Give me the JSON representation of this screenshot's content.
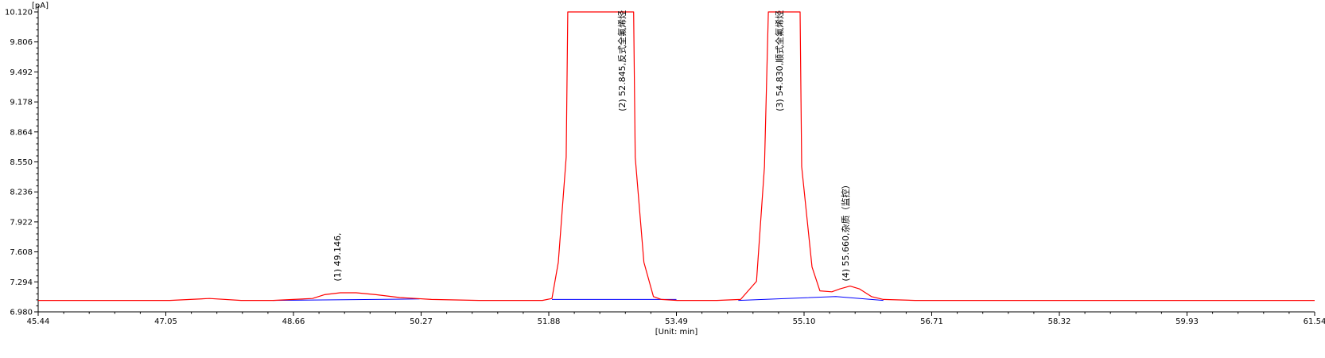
{
  "chart_data": {
    "type": "line",
    "ylabel": "[pA]",
    "xlabel": "[Unit: min]",
    "xlim": [
      45.44,
      61.54
    ],
    "ylim": [
      6.98,
      10.12
    ],
    "x_ticks": [
      "45.44",
      "47.05",
      "48.66",
      "50.27",
      "51.88",
      "53.49",
      "55.10",
      "56.71",
      "58.32",
      "59.93",
      "61.54"
    ],
    "y_ticks": [
      "6.980",
      "7.294",
      "7.608",
      "7.922",
      "8.236",
      "8.550",
      "8.864",
      "9.178",
      "9.492",
      "9.806",
      "10.120"
    ],
    "grid": false,
    "colors": {
      "signal": "#ff0000",
      "baseline": "#0000ff",
      "axis": "#000000"
    },
    "series": [
      {
        "type": "signal",
        "x": [
          45.44,
          47.1,
          47.6,
          48.0,
          48.4,
          48.9,
          49.05,
          49.25,
          49.45,
          49.7,
          50.0,
          50.4,
          51.0,
          51.6,
          51.8,
          51.92,
          52.0,
          52.1,
          52.12,
          52.95,
          52.97,
          53.08,
          53.2,
          53.3,
          53.5,
          54.0,
          54.3,
          54.5,
          54.6,
          54.65,
          55.05,
          55.07,
          55.2,
          55.3,
          55.45,
          55.55,
          55.68,
          55.8,
          55.95,
          56.1,
          56.5,
          57.5,
          59.0,
          61.54
        ],
        "y": [
          7.1,
          7.1,
          7.12,
          7.1,
          7.1,
          7.12,
          7.16,
          7.18,
          7.18,
          7.16,
          7.13,
          7.11,
          7.1,
          7.1,
          7.1,
          7.12,
          7.5,
          8.6,
          10.12,
          10.12,
          8.6,
          7.5,
          7.14,
          7.11,
          7.1,
          7.1,
          7.11,
          7.3,
          8.5,
          10.12,
          10.12,
          8.5,
          7.45,
          7.2,
          7.19,
          7.22,
          7.25,
          7.22,
          7.14,
          7.11,
          7.1,
          7.1,
          7.1,
          7.1
        ]
      },
      {
        "type": "baseline",
        "segments": [
          {
            "x": [
              48.4,
              50.25
            ],
            "y": [
              7.1,
              7.115
            ]
          },
          {
            "x": [
              51.92,
              53.49
            ],
            "y": [
              7.11,
              7.11
            ]
          },
          {
            "x": [
              54.27,
              55.5,
              56.1
            ],
            "y": [
              7.1,
              7.14,
              7.1
            ]
          }
        ]
      }
    ],
    "annotations": [
      {
        "x": 49.25,
        "y": 7.3,
        "text": "(1) 49.146,"
      },
      {
        "x": 52.845,
        "y": 9.08,
        "text": "(2) 52.845,反式全氟烯烃"
      },
      {
        "x": 54.83,
        "y": 9.08,
        "text": "(3) 54.830,顺式全氟烯烃"
      },
      {
        "x": 55.66,
        "y": 7.3,
        "text": "(4) 55.660,杂质（监控）"
      }
    ]
  }
}
